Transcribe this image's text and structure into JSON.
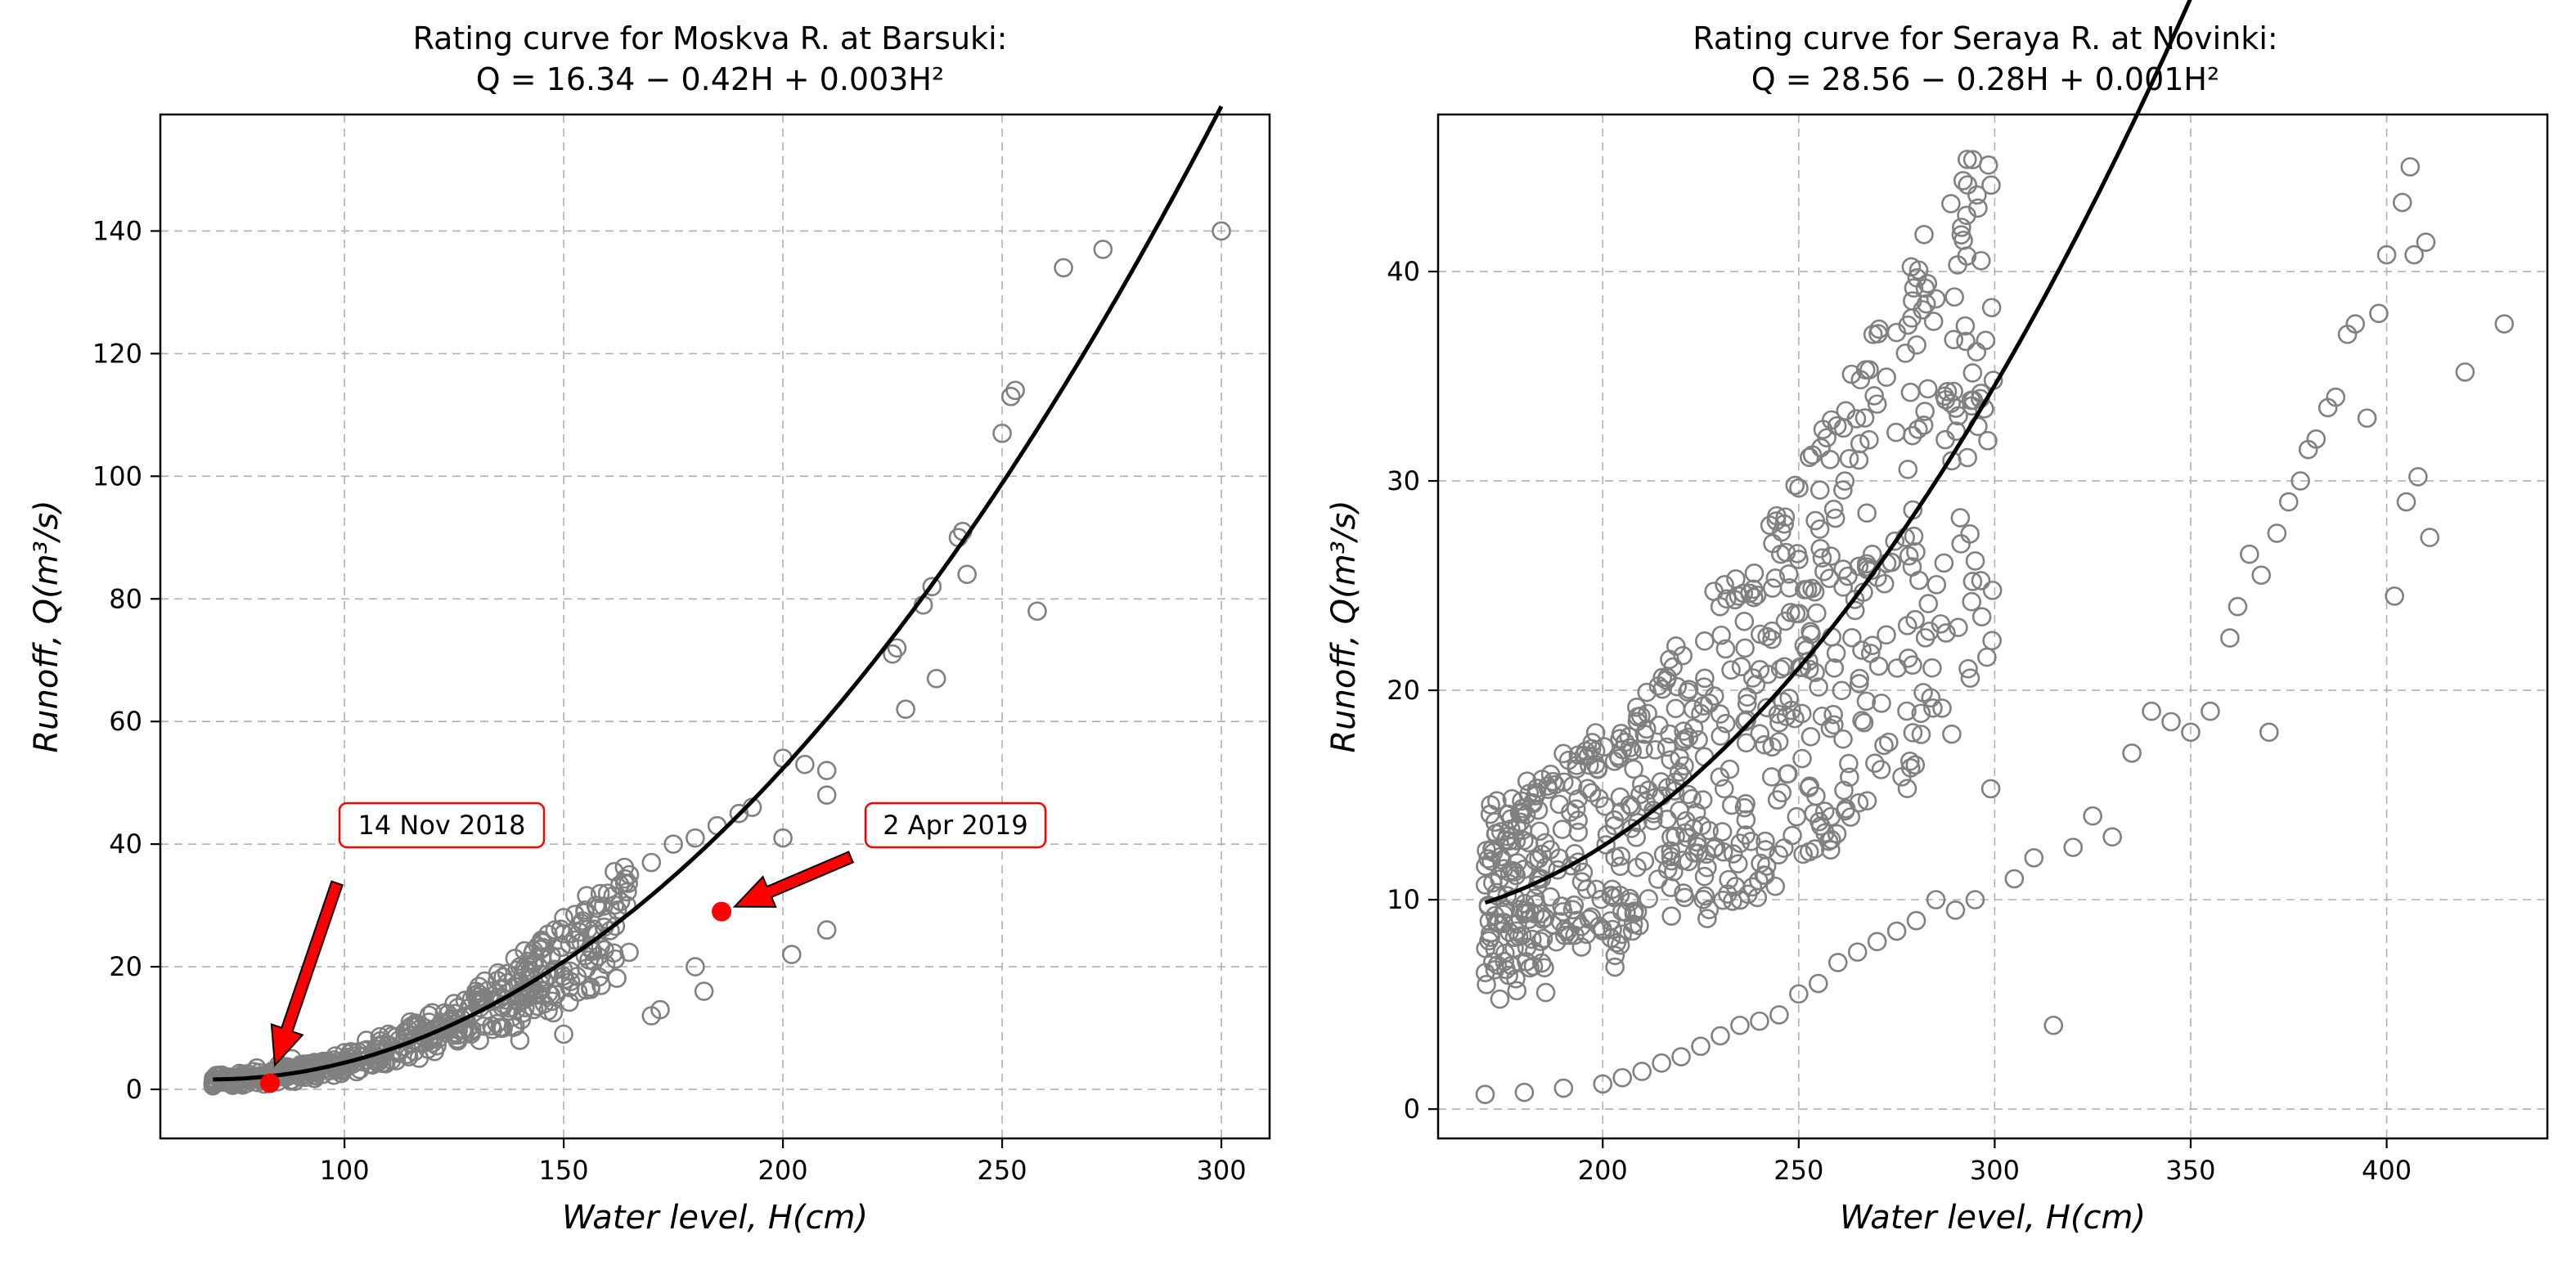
{
  "chart_data": [
    {
      "type": "scatter",
      "title": "Rating curve for Moskva R. at Barsuki:",
      "equation": "Q = 16.34 − 0.42H + 0.003H²",
      "xlabel": "Water level, H(cm)",
      "ylabel": "Runoff, Q(m³/s)",
      "xlim": [
        58,
        311
      ],
      "ylim": [
        -8,
        159
      ],
      "xticks": [
        100,
        150,
        200,
        250,
        300
      ],
      "yticks": [
        0,
        20,
        40,
        60,
        80,
        100,
        120,
        140
      ],
      "grid": true,
      "marker_color": "#808080",
      "curve_color": "#000000",
      "curve": {
        "c0": 16.34,
        "c1": -0.42,
        "c2": 0.003,
        "x_range": [
          70,
          300
        ]
      },
      "sample_points": [
        [
          70,
          1.0
        ],
        [
          75,
          1.8
        ],
        [
          80,
          3.5
        ],
        [
          85,
          4.0
        ],
        [
          88,
          5.0
        ],
        [
          95,
          4.5
        ],
        [
          100,
          6.0
        ],
        [
          105,
          8.0
        ],
        [
          110,
          9.0
        ],
        [
          115,
          11.0
        ],
        [
          120,
          12.5
        ],
        [
          125,
          14.0
        ],
        [
          130,
          16.0
        ],
        [
          135,
          19.0
        ],
        [
          140,
          20.0
        ],
        [
          145,
          24.0
        ],
        [
          148,
          26.0
        ],
        [
          150,
          28.0
        ],
        [
          160,
          32.0
        ],
        [
          165,
          35.0
        ],
        [
          170,
          37.0
        ],
        [
          175,
          40.0
        ],
        [
          180,
          41.0
        ],
        [
          185,
          43.0
        ],
        [
          190,
          45.0
        ],
        [
          193,
          46.0
        ],
        [
          200,
          54.0
        ],
        [
          205,
          53.0
        ],
        [
          210,
          52.0
        ],
        [
          200,
          41.0
        ],
        [
          210,
          48.0
        ],
        [
          210,
          26.0
        ],
        [
          202,
          22.0
        ],
        [
          170,
          12.0
        ],
        [
          172,
          13.0
        ],
        [
          182,
          16.0
        ],
        [
          180,
          20.0
        ],
        [
          150,
          9.0
        ],
        [
          140,
          8.0
        ],
        [
          225,
          71.0
        ],
        [
          226,
          72.0
        ],
        [
          228,
          62.0
        ],
        [
          232,
          79.0
        ],
        [
          234,
          82.0
        ],
        [
          235,
          67.0
        ],
        [
          240,
          90.0
        ],
        [
          241,
          91.0
        ],
        [
          242,
          84.0
        ],
        [
          250,
          107.0
        ],
        [
          252,
          113.0
        ],
        [
          253,
          114.0
        ],
        [
          258,
          78.0
        ],
        [
          264,
          134.0
        ],
        [
          273,
          137.0
        ],
        [
          300,
          140.0
        ]
      ],
      "highlight_points": [
        {
          "label": "14 Nov 2018",
          "x": 83,
          "y": 1.0
        },
        {
          "label": "2 Apr 2019",
          "x": 186,
          "y": 29.0
        }
      ]
    },
    {
      "type": "scatter",
      "title": "Rating curve for Seraya R. at Novinki:",
      "equation": "Q = 28.56 − 0.28H + 0.001H²",
      "xlabel": "Water level, H(cm)",
      "ylabel": "Runoff, Q(m³/s)",
      "xlim": [
        158,
        441
      ],
      "ylim": [
        -1.4,
        47.5
      ],
      "xticks": [
        200,
        250,
        300,
        350,
        400
      ],
      "yticks": [
        0,
        10,
        20,
        30,
        40
      ],
      "grid": true,
      "marker_color": "#808080",
      "curve_color": "#000000",
      "curve": {
        "c0": 28.56,
        "c1": -0.28,
        "c2": 0.001,
        "x_range": [
          170,
          430
        ]
      },
      "sample_points": [
        [
          170,
          0.7
        ],
        [
          180,
          0.8
        ],
        [
          190,
          1.0
        ],
        [
          200,
          1.2
        ],
        [
          205,
          1.5
        ],
        [
          210,
          1.8
        ],
        [
          215,
          2.2
        ],
        [
          220,
          2.5
        ],
        [
          225,
          3.0
        ],
        [
          230,
          3.5
        ],
        [
          235,
          4.0
        ],
        [
          240,
          4.2
        ],
        [
          245,
          4.5
        ],
        [
          250,
          5.5
        ],
        [
          255,
          6.0
        ],
        [
          260,
          7.0
        ],
        [
          265,
          7.5
        ],
        [
          270,
          8.0
        ],
        [
          275,
          8.5
        ],
        [
          280,
          9.0
        ],
        [
          285,
          10.0
        ],
        [
          290,
          9.5
        ],
        [
          295,
          10.0
        ],
        [
          299,
          15.3
        ],
        [
          305,
          11.0
        ],
        [
          310,
          12.0
        ],
        [
          315,
          4.0
        ],
        [
          320,
          12.5
        ],
        [
          325,
          14.0
        ],
        [
          330,
          13.0
        ],
        [
          335,
          17.0
        ],
        [
          340,
          19.0
        ],
        [
          345,
          18.5
        ],
        [
          350,
          18.0
        ],
        [
          355,
          19.0
        ],
        [
          360,
          22.5
        ],
        [
          362,
          24.0
        ],
        [
          365,
          26.5
        ],
        [
          368,
          25.5
        ],
        [
          370,
          18.0
        ],
        [
          372,
          27.5
        ],
        [
          375,
          29.0
        ],
        [
          378,
          30.0
        ],
        [
          380,
          31.5
        ],
        [
          382,
          32.0
        ],
        [
          385,
          33.5
        ],
        [
          387,
          34.0
        ],
        [
          390,
          37.0
        ],
        [
          392,
          37.5
        ],
        [
          395,
          33.0
        ],
        [
          398,
          38.0
        ],
        [
          400,
          40.8
        ],
        [
          402,
          24.5
        ],
        [
          404,
          43.3
        ],
        [
          405,
          29.0
        ],
        [
          406,
          45.0
        ],
        [
          407,
          40.8
        ],
        [
          408,
          30.2
        ],
        [
          410,
          41.4
        ],
        [
          411,
          27.3
        ],
        [
          420,
          35.2
        ],
        [
          430,
          37.5
        ]
      ]
    }
  ]
}
